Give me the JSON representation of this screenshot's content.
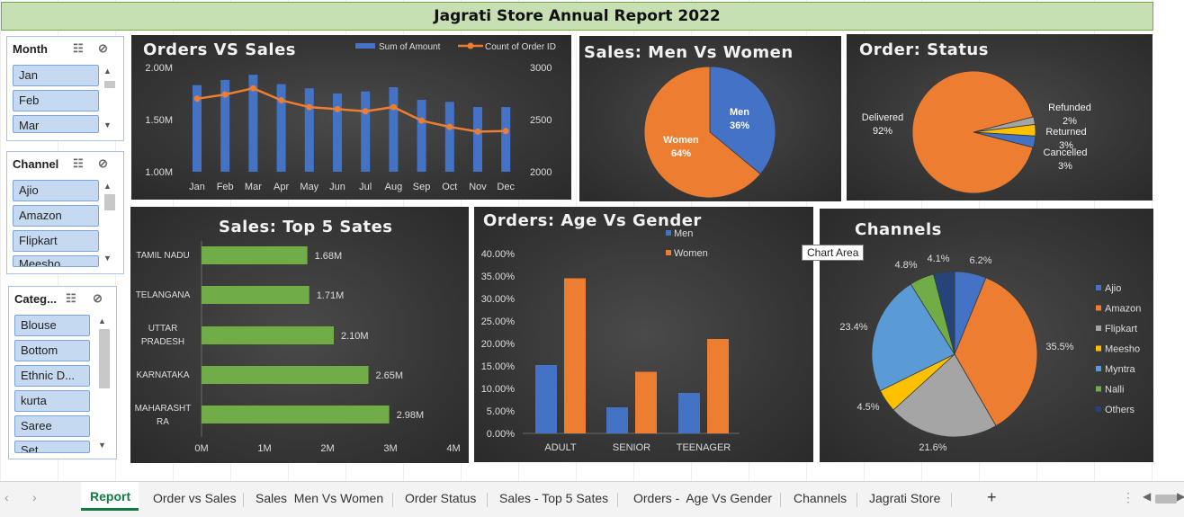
{
  "title": "Jagrati Store Annual Report 2022",
  "slicers": {
    "month": {
      "label": "Month",
      "items": [
        "Jan",
        "Feb",
        "Mar"
      ]
    },
    "channel": {
      "label": "Channel",
      "items": [
        "Ajio",
        "Amazon",
        "Flipkart",
        "Meesho"
      ]
    },
    "category": {
      "label": "Categ...",
      "items": [
        "Blouse",
        "Bottom",
        "Ethnic D...",
        "kurta",
        "Saree",
        "Set"
      ]
    }
  },
  "charts": {
    "orders_sales": {
      "title": "Orders VS Sales",
      "legend": [
        "Sum of Amount",
        "Count of Order ID"
      ],
      "y_left_ticks": [
        "2.00M",
        "1.50M",
        "1.00M"
      ],
      "y_right_ticks": [
        "3000",
        "2500",
        "2000"
      ]
    },
    "men_women": {
      "title": "Sales: Men Vs Women",
      "labels": [
        "Men",
        "36%",
        "Women",
        "64%"
      ]
    },
    "status": {
      "title": "Order: Status",
      "labels": [
        "Delivered",
        "92%",
        "Refunded",
        "2%",
        "Returned",
        "3%",
        "Cancelled",
        "3%"
      ]
    },
    "top5": {
      "title": "Sales: Top 5 Sates",
      "x_ticks": [
        "0M",
        "1M",
        "2M",
        "3M",
        "4M"
      ],
      "value_labels": [
        "1.68M",
        "1.71M",
        "2.10M",
        "2.65M",
        "2.98M"
      ]
    },
    "age_gender": {
      "title": "Orders: Age Vs Gender",
      "legend": [
        "Men",
        "Women"
      ],
      "y_ticks": [
        "40.00%",
        "35.00%",
        "30.00%",
        "25.00%",
        "20.00%",
        "15.00%",
        "10.00%",
        "5.00%",
        "0.00%"
      ]
    },
    "channels": {
      "title": "Channels",
      "legend": [
        "Ajio",
        "Amazon",
        "Flipkart",
        "Meesho",
        "Myntra",
        "Nalli",
        "Others"
      ],
      "pct_labels": [
        "6.2%",
        "35.5%",
        "21.6%",
        "4.5%",
        "23.4%",
        "4.8%",
        "4.1%"
      ]
    }
  },
  "chart_data": [
    {
      "type": "bar",
      "title": "Orders VS Sales",
      "categories": [
        "Jan",
        "Feb",
        "Mar",
        "Apr",
        "May",
        "Jun",
        "Jul",
        "Aug",
        "Sep",
        "Oct",
        "Nov",
        "Dec"
      ],
      "series": [
        {
          "name": "Sum of Amount",
          "type": "bar",
          "axis": "left",
          "values": [
            1.83,
            1.88,
            1.93,
            1.84,
            1.8,
            1.75,
            1.77,
            1.81,
            1.69,
            1.67,
            1.62,
            1.62
          ]
        },
        {
          "name": "Count of Order ID",
          "type": "line",
          "axis": "right",
          "values": [
            2700,
            2740,
            2800,
            2685,
            2620,
            2600,
            2580,
            2620,
            2490,
            2430,
            2385,
            2390
          ]
        }
      ],
      "ylim": [
        1.0,
        2.0
      ],
      "y2lim": [
        2000,
        3000
      ],
      "colors": [
        "#4472c4",
        "#ed7d31"
      ]
    },
    {
      "type": "pie",
      "title": "Sales: Men Vs Women",
      "categories": [
        "Men",
        "Women"
      ],
      "values": [
        36,
        64
      ],
      "colors": [
        "#4472c4",
        "#ed7d31"
      ]
    },
    {
      "type": "pie",
      "title": "Order: Status",
      "categories": [
        "Delivered",
        "Refunded",
        "Returned",
        "Cancelled"
      ],
      "values": [
        92,
        2,
        3,
        3
      ],
      "colors": [
        "#ed7d31",
        "#a5a5a5",
        "#ffc000",
        "#4472c4"
      ]
    },
    {
      "type": "bar",
      "title": "Sales: Top 5 Sates",
      "categories": [
        "TAMIL NADU",
        "TELANGANA",
        "UTTAR PRADESH",
        "KARNATAKA",
        "MAHARASHTRA"
      ],
      "values": [
        1.68,
        1.71,
        2.1,
        2.65,
        2.98
      ],
      "xlim": [
        0,
        4
      ],
      "colors": [
        "#70ad47"
      ]
    },
    {
      "type": "bar",
      "title": "Orders: Age Vs Gender",
      "categories": [
        "ADULT",
        "SENIOR",
        "TEENAGER"
      ],
      "series": [
        {
          "name": "Men",
          "values": [
            15.2,
            5.8,
            9.0
          ]
        },
        {
          "name": "Women",
          "values": [
            34.5,
            13.7,
            21.0
          ]
        }
      ],
      "ylim": [
        0,
        40
      ],
      "colors": [
        "#4472c4",
        "#ed7d31"
      ]
    },
    {
      "type": "pie",
      "title": "Channels",
      "categories": [
        "Ajio",
        "Amazon",
        "Flipkart",
        "Meesho",
        "Myntra",
        "Nalli",
        "Others"
      ],
      "values": [
        6.2,
        35.5,
        21.6,
        4.5,
        23.4,
        4.8,
        4.1
      ],
      "colors": [
        "#4472c4",
        "#ed7d31",
        "#a5a5a5",
        "#ffc000",
        "#5b9bd5",
        "#70ad47",
        "#264478"
      ]
    }
  ],
  "tooltip": "Chart Area",
  "tabs": [
    "Report",
    "Order vs Sales",
    "Sales  Men Vs Women",
    "Order Status",
    "Sales - Top 5 Sates",
    "Orders -  Age Vs Gender",
    "Channels",
    "Jagrati Store"
  ],
  "add_tab": "+"
}
